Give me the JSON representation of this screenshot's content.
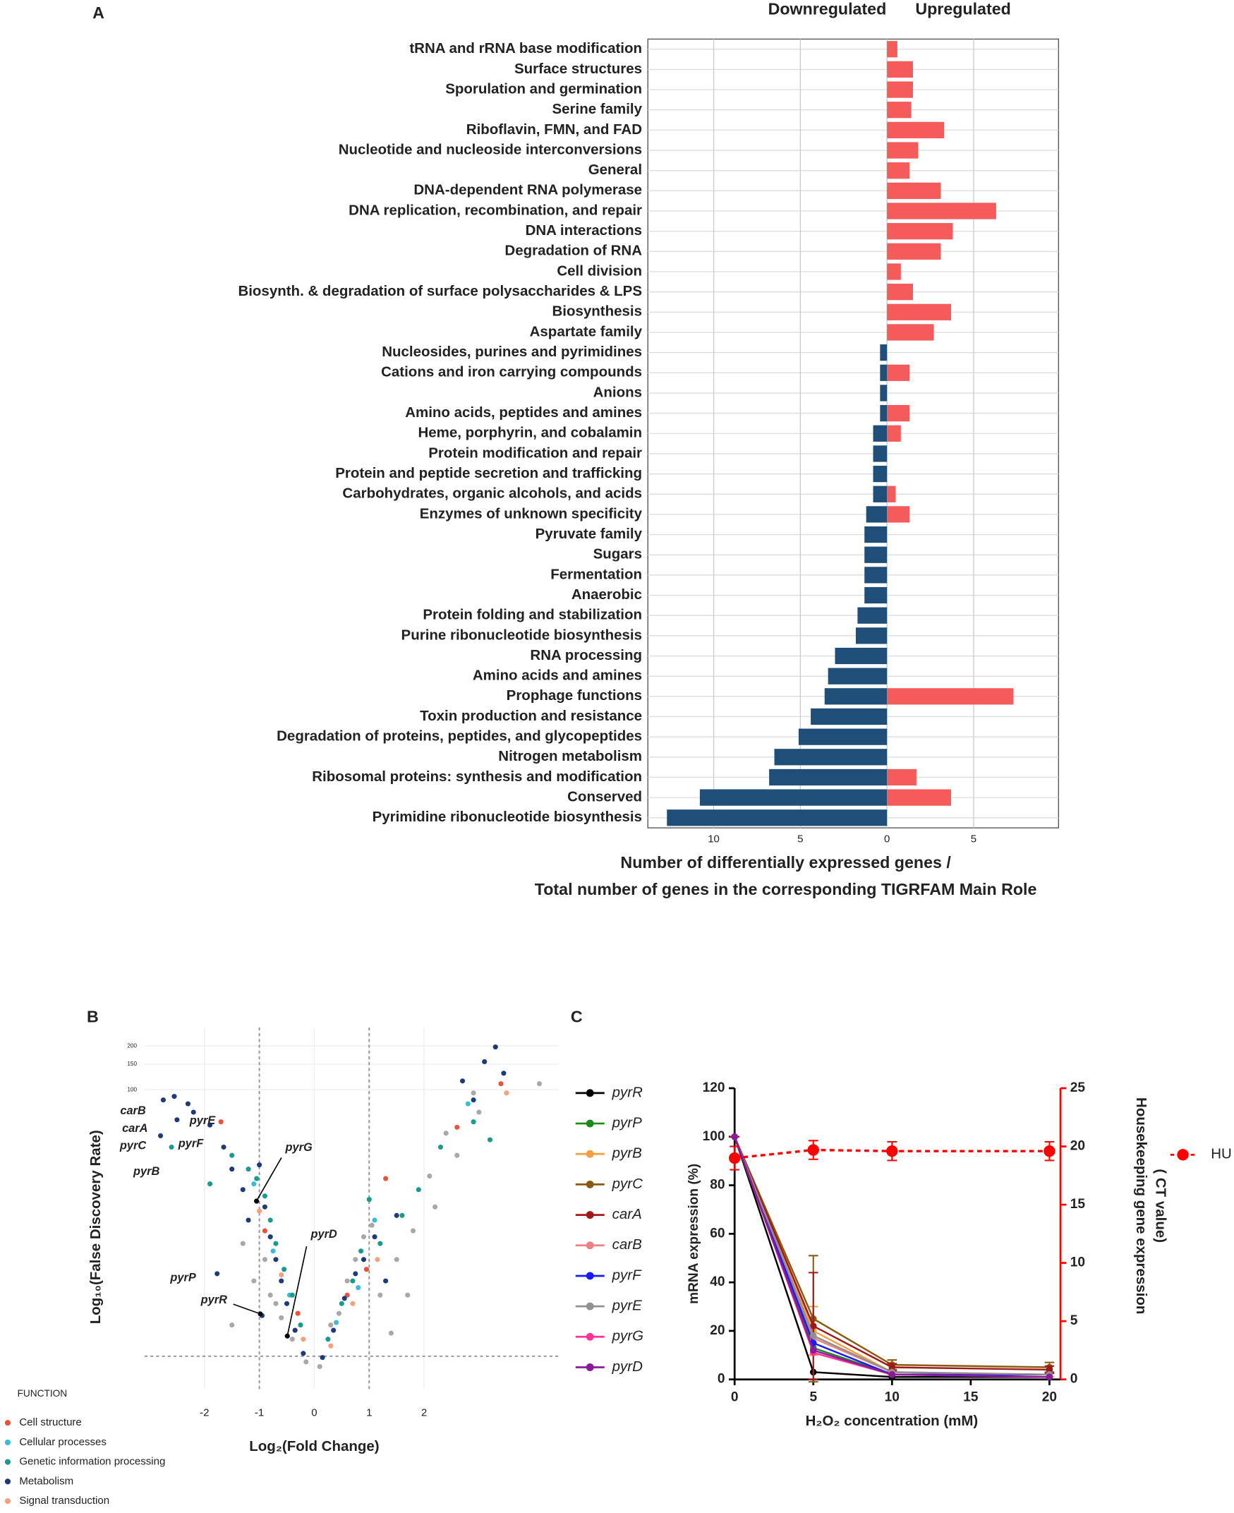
{
  "chart_data": [
    {
      "type": "bar",
      "label": "A",
      "categories": [
        "tRNA and rRNA base modification",
        "Surface structures",
        "Sporulation and germination",
        "Serine family",
        "Riboflavin, FMN, and FAD",
        "Nucleotide and nucleoside interconversions",
        "General",
        "DNA-dependent RNA polymerase",
        "DNA replication, recombination, and repair",
        "DNA interactions",
        "Degradation of RNA",
        "Cell division",
        "Biosynth. & degradation of surface polysaccharides & LPS",
        "Biosynthesis",
        "Aspartate family",
        "Nucleosides, purines and pyrimidines",
        "Cations and iron carrying compounds",
        "Anions",
        "Amino acids, peptides and amines",
        "Heme, porphyrin, and cobalamin",
        "Protein modification and repair",
        "Protein and peptide secretion and trafficking",
        "Carbohydrates, organic alcohols, and acids",
        "Enzymes of unknown specificity",
        "Pyruvate family",
        "Sugars",
        "Fermentation",
        "Anaerobic",
        "Protein folding and stabilization",
        "Purine ribonucleotide biosynthesis",
        "RNA processing",
        "Amino acids and amines",
        "Prophage functions",
        "Toxin production and resistance",
        "Degradation of proteins, peptides, and glycopeptides",
        "Nitrogen metabolism",
        "Ribosomal proteins: synthesis and modification",
        "Conserved",
        "Pyrimidine ribonucleotide biosynthesis"
      ],
      "series": [
        {
          "name": "Downregulated",
          "color": "#1f4e79",
          "values": [
            null,
            null,
            null,
            null,
            null,
            null,
            null,
            null,
            null,
            null,
            null,
            null,
            null,
            null,
            null,
            -0.4,
            -0.4,
            -0.4,
            -0.4,
            -0.8,
            -0.8,
            -0.8,
            -0.8,
            -1.2,
            -1.3,
            -1.3,
            -1.3,
            -1.3,
            -1.7,
            -1.8,
            -3.0,
            -3.4,
            -3.6,
            -4.4,
            -5.1,
            -6.5,
            -6.8,
            -10.8,
            -12.7
          ]
        },
        {
          "name": "Upregulated",
          "color": "#f45b5b",
          "values": [
            0.6,
            1.5,
            1.5,
            1.4,
            3.3,
            1.8,
            1.3,
            3.1,
            6.3,
            3.8,
            3.1,
            0.8,
            1.5,
            3.7,
            2.7,
            null,
            1.3,
            null,
            1.3,
            0.8,
            null,
            null,
            0.5,
            1.3,
            null,
            null,
            null,
            null,
            null,
            null,
            null,
            null,
            7.3,
            null,
            null,
            null,
            1.7,
            3.7,
            null
          ]
        }
      ],
      "xlim": [
        -13.8,
        9.9
      ],
      "xticks": [
        {
          "value": -10,
          "label": "10"
        },
        {
          "value": -5,
          "label": "5"
        },
        0,
        5
      ],
      "xlabel": [
        "Number of differentially expressed genes /",
        "Total number of genes in the corresponding  TIGRFAM Main Role"
      ],
      "grid": true
    },
    {
      "type": "scatter",
      "label": "B",
      "xlabel": "Log₂(Fold Change)",
      "ylabel": "Log₁₀(False Discovery Rate)",
      "xlim": [
        -3.09,
        4.46
      ],
      "ylim": [
        0,
        268
      ],
      "yscale": "log1p",
      "xticks": [
        -2,
        -1,
        0,
        1,
        2
      ],
      "yticks": [
        100,
        150,
        200
      ],
      "reference_lines": {
        "x": [
          -1,
          1
        ],
        "y": [
          0.53
        ]
      },
      "legend_title": "FUNCTION",
      "series": [
        {
          "color": "#a8a8a8",
          "x": [
            -1.3,
            -1.1,
            -0.8,
            -0.6,
            -0.4,
            0.3,
            0.6,
            0.9,
            1.2,
            1.5,
            1.8,
            2.1,
            2.4,
            2.9,
            3.0,
            4.1,
            -0.15,
            0.1,
            1.4,
            -1.5,
            2.2,
            2.6,
            -0.9,
            0.45,
            1.05,
            -0.7,
            0.75,
            1.7
          ],
          "values": [
            8,
            4,
            3,
            1.8,
            1,
            1.5,
            4,
            9,
            3,
            6,
            10,
            25,
            50,
            95,
            70,
            110,
            0.4,
            0.3,
            1.2,
            1.5,
            15,
            35,
            6,
            2,
            11,
            2.5,
            6,
            3
          ]
        },
        {
          "name": "Cell structure",
          "color": "#e8533a",
          "x": [
            -1.7,
            -0.9,
            0.6,
            1.3,
            2.6,
            3.4,
            -0.3,
            0.95
          ],
          "values": [
            60,
            10,
            3,
            24,
            55,
            110,
            2,
            5
          ]
        },
        {
          "name": "Cellular processes",
          "color": "#3bbcd6",
          "x": [
            -1.1,
            -0.75,
            -0.45,
            0.4,
            0.8,
            1.1,
            2.8
          ],
          "values": [
            22,
            7,
            3,
            1.6,
            3.5,
            12,
            80
          ]
        },
        {
          "name": "Genetic information processing",
          "color": "#1a9a8a",
          "x": [
            -2.6,
            -1.5,
            -1.2,
            -1.05,
            -0.9,
            -0.8,
            -0.7,
            -0.55,
            -0.4,
            -0.25,
            0.25,
            0.5,
            0.7,
            0.85,
            1.0,
            1.6,
            1.9,
            2.3,
            2.9,
            3.2,
            -1.9,
            1.2
          ],
          "values": [
            40,
            35,
            28,
            24,
            18,
            12,
            8,
            5,
            3,
            1.5,
            1,
            2.5,
            4,
            7,
            17,
            13,
            20,
            40,
            60,
            45,
            22,
            8
          ]
        },
        {
          "name": "Metabolism",
          "color": "#1f3a7a",
          "x": [
            -2.75,
            -2.55,
            -2.3,
            -2.2,
            -2.5,
            -2.8,
            -1.9,
            -1.65,
            -1.5,
            -1.3,
            -1.2,
            -1.0,
            -0.9,
            -0.8,
            -0.7,
            -0.6,
            -0.5,
            -0.35,
            -0.2,
            0.15,
            0.35,
            0.55,
            0.75,
            0.9,
            1.1,
            1.3,
            2.7,
            2.9,
            3.1,
            3.3,
            3.45,
            1.5,
            -1.77,
            -0.95,
            -0.49,
            -1.05
          ],
          "values": [
            85,
            90,
            80,
            70,
            62,
            48,
            57,
            40,
            28,
            20,
            12,
            30,
            15,
            9,
            6,
            4,
            2.5,
            1.3,
            0.6,
            0.5,
            1.3,
            2.8,
            4.6,
            6,
            9,
            4,
            115,
            85,
            156,
            197,
            130,
            13,
            4.6,
            1.9,
            1.1,
            16.5
          ]
        },
        {
          "name": "Signal transduction",
          "color": "#f3a07c",
          "x": [
            -0.6,
            -0.2,
            0.3,
            0.7,
            1.15,
            3.5,
            -1.0
          ],
          "values": [
            4.5,
            1,
            0.8,
            2.5,
            6,
            95,
            14
          ]
        }
      ],
      "annotations": [
        "carB",
        "carA",
        "pyrC",
        "pyrB",
        "pyrE",
        "pyrF",
        "pyrG",
        "pyrD",
        "pyrP",
        "pyrR"
      ]
    },
    {
      "type": "line",
      "label": "C",
      "xlabel": "H₂O₂ concentration (mM)",
      "ylabel": "mRNA expression (%)",
      "y2label": [
        "Housekeeping gene expression",
        "( CT value)"
      ],
      "x": [
        0,
        5,
        10,
        20
      ],
      "xlim": [
        0,
        20.7
      ],
      "ylim": [
        0,
        120
      ],
      "y2lim": [
        0,
        25
      ],
      "xticks": [
        0,
        5,
        10,
        15,
        20
      ],
      "yticks": [
        0,
        20,
        40,
        60,
        80,
        100,
        120
      ],
      "y2ticks": [
        0,
        5,
        10,
        15,
        20,
        25
      ],
      "series": [
        {
          "name": "pyrR",
          "color": "#000000",
          "values": [
            100,
            3,
            1,
            1
          ]
        },
        {
          "name": "pyrP",
          "color": "#1a8a1a",
          "values": [
            100,
            13,
            2,
            2
          ]
        },
        {
          "name": "pyrB",
          "color": "#f5a040",
          "values": [
            100,
            20,
            3,
            2
          ],
          "errors": [
            0,
            10,
            1,
            1
          ]
        },
        {
          "name": "pyrC",
          "color": "#8b5a10",
          "values": [
            100,
            25,
            6,
            5
          ],
          "errors": [
            0,
            26,
            2,
            2
          ]
        },
        {
          "name": "carA",
          "color": "#a01818",
          "values": [
            100,
            22,
            5,
            4
          ],
          "errors": [
            0,
            22,
            1.5,
            1.5
          ]
        },
        {
          "name": "carB",
          "color": "#f08080",
          "values": [
            100,
            17,
            3,
            2
          ]
        },
        {
          "name": "pyrF",
          "color": "#1a1aff",
          "values": [
            100,
            15,
            2,
            2
          ]
        },
        {
          "name": "pyrE",
          "color": "#909090",
          "values": [
            100,
            18,
            3,
            2
          ]
        },
        {
          "name": "pyrG",
          "color": "#ff3399",
          "values": [
            100,
            11,
            2,
            1
          ]
        },
        {
          "name": "pyrD",
          "color": "#8b1a9b",
          "values": [
            100,
            12,
            2,
            1
          ]
        },
        {
          "name": "HU",
          "color": "#ff0000",
          "axis": "y2",
          "dashed": true,
          "values": [
            19,
            19.7,
            19.6,
            19.6
          ],
          "errors": [
            1,
            0.8,
            0.8,
            0.8
          ]
        }
      ]
    }
  ]
}
